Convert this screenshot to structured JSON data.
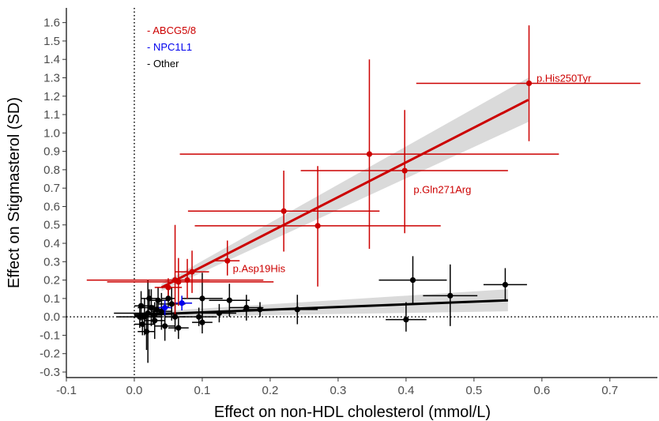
{
  "chart_data": {
    "type": "scatter",
    "xlabel": "Effect on non-HDL cholesterol (mmol/L)",
    "ylabel": "Effect on Stigmasterol (SD)",
    "xlim": [
      -0.1,
      0.77
    ],
    "ylim": [
      -0.33,
      1.68
    ],
    "x_ticks": [
      -0.1,
      0.0,
      0.1,
      0.2,
      0.3,
      0.4,
      0.5,
      0.6,
      0.7
    ],
    "x_tick_labels": [
      "-0.1",
      "0.0",
      "0.1",
      "0.2",
      "0.3",
      "0.4",
      "0.5",
      "0.6",
      "0.7"
    ],
    "y_ticks": [
      -0.3,
      -0.2,
      -0.1,
      0.0,
      0.1,
      0.2,
      0.3,
      0.4,
      0.5,
      0.6,
      0.7,
      0.8,
      0.9,
      1.0,
      1.1,
      1.2,
      1.3,
      1.4,
      1.5,
      1.6
    ],
    "y_tick_labels": [
      "-0.3",
      "-0.2",
      "-0.1",
      "0.0",
      "0.1",
      "0.2",
      "0.3",
      "0.4",
      "0.5",
      "0.6",
      "0.7",
      "0.8",
      "0.9",
      "1.0",
      "1.1",
      "1.2",
      "1.3",
      "1.4",
      "1.5",
      "1.6"
    ],
    "grid": false,
    "legend_position": "top-left",
    "colors": {
      "ABCG5/8": "#cc0000",
      "NPC1L1": "#0000ee",
      "Other": "#000000",
      "band": "#d3d3d3"
    },
    "legend": [
      {
        "label": "- ABCG5/8",
        "color": "#cc0000"
      },
      {
        "label": "- NPC1L1",
        "color": "#0000ee"
      },
      {
        "label": "- Other",
        "color": "#000000"
      }
    ],
    "annotations": [
      {
        "text": "p.His250Tyr",
        "x": 0.592,
        "y": 1.3
      },
      {
        "text": "p.Gln271Arg",
        "x": 0.411,
        "y": 0.695
      },
      {
        "text": "p.Asp19His",
        "x": 0.145,
        "y": 0.265
      }
    ],
    "fits": [
      {
        "group": "ABCG5/8",
        "x": [
          0.04,
          0.58
        ],
        "y": [
          0.16,
          1.18
        ],
        "band_halfwidth": [
          0.02,
          0.12
        ]
      },
      {
        "group": "Other",
        "x": [
          0.0,
          0.55
        ],
        "y": [
          0.01,
          0.09
        ],
        "band_halfwidth": [
          0.012,
          0.06
        ]
      }
    ],
    "series": [
      {
        "group": "ABCG5/8",
        "points": [
          {
            "x": 0.581,
            "y": 1.27,
            "xmin": 0.415,
            "xmax": 0.745,
            "ymin": 0.955,
            "ymax": 1.585
          },
          {
            "x": 0.346,
            "y": 0.885,
            "xmin": 0.067,
            "xmax": 0.625,
            "ymin": 0.37,
            "ymax": 1.4
          },
          {
            "x": 0.398,
            "y": 0.795,
            "xmin": 0.245,
            "xmax": 0.55,
            "ymin": 0.455,
            "ymax": 1.125
          },
          {
            "x": 0.22,
            "y": 0.575,
            "xmin": 0.079,
            "xmax": 0.361,
            "ymin": 0.355,
            "ymax": 0.795
          },
          {
            "x": 0.27,
            "y": 0.495,
            "xmin": 0.089,
            "xmax": 0.451,
            "ymin": 0.165,
            "ymax": 0.82
          },
          {
            "x": 0.137,
            "y": 0.305,
            "xmin": 0.118,
            "xmax": 0.155,
            "ymin": 0.225,
            "ymax": 0.415
          },
          {
            "x": 0.085,
            "y": 0.245,
            "xmin": 0.06,
            "xmax": 0.11,
            "ymin": 0.13,
            "ymax": 0.36
          },
          {
            "x": 0.078,
            "y": 0.2,
            "xmin": 0.045,
            "xmax": 0.111,
            "ymin": 0.1,
            "ymax": 0.315
          },
          {
            "x": 0.06,
            "y": 0.2,
            "xmin": -0.07,
            "xmax": 0.19,
            "ymin": 0.01,
            "ymax": 0.5
          },
          {
            "x": 0.065,
            "y": 0.19,
            "xmin": -0.04,
            "xmax": 0.205,
            "ymin": 0.06,
            "ymax": 0.32
          },
          {
            "x": 0.05,
            "y": 0.16,
            "xmin": 0.03,
            "xmax": 0.07,
            "ymin": 0.11,
            "ymax": 0.21
          }
        ]
      },
      {
        "group": "NPC1L1",
        "points": [
          {
            "x": 0.07,
            "y": 0.075,
            "xmin": 0.055,
            "xmax": 0.085,
            "ymin": 0.035,
            "ymax": 0.115
          },
          {
            "x": 0.045,
            "y": 0.05,
            "xmin": 0.035,
            "xmax": 0.055,
            "ymin": 0.01,
            "ymax": 0.09
          }
        ]
      },
      {
        "group": "Other",
        "points": [
          {
            "x": 0.546,
            "y": 0.175,
            "xmin": 0.514,
            "xmax": 0.578,
            "ymin": 0.085,
            "ymax": 0.265
          },
          {
            "x": 0.41,
            "y": 0.2,
            "xmin": 0.36,
            "xmax": 0.46,
            "ymin": 0.07,
            "ymax": 0.33
          },
          {
            "x": 0.465,
            "y": 0.115,
            "xmin": 0.425,
            "xmax": 0.505,
            "ymin": -0.05,
            "ymax": 0.285
          },
          {
            "x": 0.4,
            "y": -0.015,
            "xmin": 0.37,
            "xmax": 0.43,
            "ymin": -0.08,
            "ymax": 0.08
          },
          {
            "x": 0.24,
            "y": 0.04,
            "xmin": 0.21,
            "xmax": 0.27,
            "ymin": -0.04,
            "ymax": 0.12
          },
          {
            "x": 0.165,
            "y": 0.05,
            "xmin": 0.14,
            "xmax": 0.19,
            "ymin": -0.02,
            "ymax": 0.12
          },
          {
            "x": 0.14,
            "y": 0.09,
            "xmin": 0.11,
            "xmax": 0.17,
            "ymin": 0.0,
            "ymax": 0.18
          },
          {
            "x": 0.1,
            "y": 0.1,
            "xmin": 0.07,
            "xmax": 0.13,
            "ymin": -0.04,
            "ymax": 0.24
          },
          {
            "x": 0.1,
            "y": -0.03,
            "xmin": 0.085,
            "xmax": 0.115,
            "ymin": -0.09,
            "ymax": 0.03
          },
          {
            "x": 0.095,
            "y": 0.0,
            "xmin": 0.07,
            "xmax": 0.12,
            "ymin": -0.05,
            "ymax": 0.05
          },
          {
            "x": 0.125,
            "y": 0.02,
            "xmin": 0.1,
            "xmax": 0.15,
            "ymin": -0.03,
            "ymax": 0.07
          },
          {
            "x": 0.185,
            "y": 0.04,
            "xmin": 0.16,
            "xmax": 0.21,
            "ymin": 0.0,
            "ymax": 0.08
          },
          {
            "x": 0.02,
            "y": 0.02,
            "xmin": -0.03,
            "xmax": 0.07,
            "ymin": -0.25,
            "ymax": 0.2
          },
          {
            "x": 0.015,
            "y": 0.0,
            "xmin": 0.0,
            "xmax": 0.04,
            "ymin": -0.1,
            "ymax": 0.1
          },
          {
            "x": 0.025,
            "y": 0.05,
            "xmin": 0.005,
            "xmax": 0.045,
            "ymin": -0.05,
            "ymax": 0.15
          },
          {
            "x": 0.03,
            "y": -0.02,
            "xmin": 0.015,
            "xmax": 0.045,
            "ymin": -0.12,
            "ymax": 0.08
          },
          {
            "x": 0.035,
            "y": 0.09,
            "xmin": 0.02,
            "xmax": 0.05,
            "ymin": 0.02,
            "ymax": 0.16
          },
          {
            "x": 0.04,
            "y": 0.03,
            "xmin": 0.025,
            "xmax": 0.055,
            "ymin": -0.07,
            "ymax": 0.13
          },
          {
            "x": 0.045,
            "y": -0.05,
            "xmin": 0.03,
            "xmax": 0.06,
            "ymin": -0.13,
            "ymax": 0.03
          },
          {
            "x": 0.055,
            "y": 0.07,
            "xmin": 0.035,
            "xmax": 0.075,
            "ymin": -0.02,
            "ymax": 0.16
          },
          {
            "x": 0.06,
            "y": 0.0,
            "xmin": 0.045,
            "xmax": 0.075,
            "ymin": -0.08,
            "ymax": 0.08
          },
          {
            "x": 0.065,
            "y": -0.06,
            "xmin": 0.05,
            "xmax": 0.08,
            "ymin": -0.12,
            "ymax": 0.0
          },
          {
            "x": 0.01,
            "y": 0.06,
            "xmin": 0.0,
            "xmax": 0.03,
            "ymin": -0.02,
            "ymax": 0.14
          },
          {
            "x": 0.012,
            "y": -0.04,
            "xmin": 0.0,
            "xmax": 0.03,
            "ymin": -0.1,
            "ymax": 0.02
          },
          {
            "x": 0.022,
            "y": 0.1,
            "xmin": 0.01,
            "xmax": 0.035,
            "ymin": 0.05,
            "ymax": 0.15
          },
          {
            "x": 0.028,
            "y": 0.01,
            "xmin": 0.015,
            "xmax": 0.04,
            "ymin": -0.04,
            "ymax": 0.06
          },
          {
            "x": 0.008,
            "y": 0.0,
            "xmin": -0.025,
            "xmax": 0.04,
            "ymin": -0.06,
            "ymax": 0.06
          },
          {
            "x": 0.018,
            "y": -0.08,
            "xmin": 0.005,
            "xmax": 0.03,
            "ymin": -0.18,
            "ymax": 0.02
          },
          {
            "x": 0.033,
            "y": 0.04,
            "xmin": 0.02,
            "xmax": 0.045,
            "ymin": 0.0,
            "ymax": 0.08
          },
          {
            "x": 0.05,
            "y": 0.1,
            "xmin": 0.04,
            "xmax": 0.06,
            "ymin": 0.05,
            "ymax": 0.15
          }
        ]
      }
    ]
  }
}
